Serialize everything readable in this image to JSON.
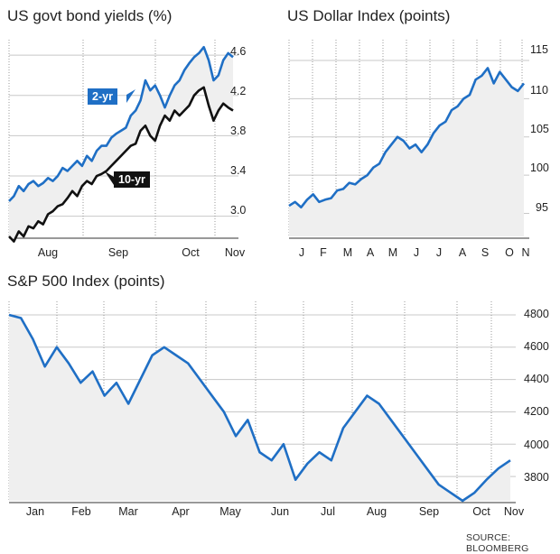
{
  "colors": {
    "blue": "#1f6fc5",
    "black": "#111111",
    "grid": "#c8c8c8",
    "fill": "#efefef"
  },
  "source": "SOURCE: BLOOMBERG",
  "chart_data": [
    {
      "type": "line",
      "title": "US govt bond yields (%)",
      "x_ticks": [
        "Aug",
        "Sep",
        "Oct",
        "Nov"
      ],
      "y_ticks": [
        "4.6",
        "4.2",
        "3.8",
        "3.4",
        "3.0"
      ],
      "ylim": [
        2.8,
        4.7
      ],
      "series": [
        {
          "name": "2-yr",
          "color": "#1f6fc5",
          "points": [
            [
              0,
              3.15
            ],
            [
              2,
              3.2
            ],
            [
              4,
              3.3
            ],
            [
              6,
              3.25
            ],
            [
              8,
              3.32
            ],
            [
              10,
              3.35
            ],
            [
              12,
              3.3
            ],
            [
              14,
              3.33
            ],
            [
              16,
              3.38
            ],
            [
              18,
              3.35
            ],
            [
              20,
              3.4
            ],
            [
              22,
              3.48
            ],
            [
              24,
              3.45
            ],
            [
              26,
              3.5
            ],
            [
              28,
              3.55
            ],
            [
              30,
              3.5
            ],
            [
              32,
              3.6
            ],
            [
              34,
              3.55
            ],
            [
              36,
              3.65
            ],
            [
              38,
              3.7
            ],
            [
              40,
              3.7
            ],
            [
              42,
              3.78
            ],
            [
              44,
              3.82
            ],
            [
              46,
              3.85
            ],
            [
              48,
              3.88
            ],
            [
              50,
              4.0
            ],
            [
              52,
              4.05
            ],
            [
              54,
              4.15
            ],
            [
              56,
              4.35
            ],
            [
              58,
              4.25
            ],
            [
              60,
              4.3
            ],
            [
              62,
              4.2
            ],
            [
              64,
              4.08
            ],
            [
              66,
              4.2
            ],
            [
              68,
              4.3
            ],
            [
              70,
              4.35
            ],
            [
              72,
              4.45
            ],
            [
              74,
              4.52
            ],
            [
              76,
              4.58
            ],
            [
              78,
              4.62
            ],
            [
              80,
              4.68
            ],
            [
              82,
              4.55
            ],
            [
              84,
              4.35
            ],
            [
              86,
              4.4
            ],
            [
              88,
              4.55
            ],
            [
              90,
              4.62
            ],
            [
              92,
              4.58
            ]
          ]
        },
        {
          "name": "10-yr",
          "color": "#111111",
          "points": [
            [
              0,
              2.8
            ],
            [
              2,
              2.75
            ],
            [
              4,
              2.85
            ],
            [
              6,
              2.8
            ],
            [
              8,
              2.9
            ],
            [
              10,
              2.88
            ],
            [
              12,
              2.95
            ],
            [
              14,
              2.92
            ],
            [
              16,
              3.02
            ],
            [
              18,
              3.05
            ],
            [
              20,
              3.1
            ],
            [
              22,
              3.12
            ],
            [
              24,
              3.18
            ],
            [
              26,
              3.25
            ],
            [
              28,
              3.2
            ],
            [
              30,
              3.3
            ],
            [
              32,
              3.35
            ],
            [
              34,
              3.32
            ],
            [
              36,
              3.4
            ],
            [
              38,
              3.42
            ],
            [
              40,
              3.45
            ],
            [
              42,
              3.5
            ],
            [
              44,
              3.55
            ],
            [
              46,
              3.6
            ],
            [
              48,
              3.65
            ],
            [
              50,
              3.7
            ],
            [
              52,
              3.72
            ],
            [
              54,
              3.85
            ],
            [
              56,
              3.9
            ],
            [
              58,
              3.8
            ],
            [
              60,
              3.75
            ],
            [
              62,
              3.9
            ],
            [
              64,
              4.0
            ],
            [
              66,
              3.95
            ],
            [
              68,
              4.05
            ],
            [
              70,
              4.0
            ],
            [
              72,
              4.05
            ],
            [
              74,
              4.1
            ],
            [
              76,
              4.2
            ],
            [
              78,
              4.25
            ],
            [
              80,
              4.28
            ],
            [
              82,
              4.1
            ],
            [
              84,
              3.95
            ],
            [
              86,
              4.05
            ],
            [
              88,
              4.12
            ],
            [
              90,
              4.08
            ],
            [
              92,
              4.05
            ]
          ]
        }
      ]
    },
    {
      "type": "line",
      "title": "US Dollar Index (points)",
      "x_ticks": [
        "J",
        "F",
        "M",
        "A",
        "M",
        "J",
        "J",
        "A",
        "S",
        "O",
        "N"
      ],
      "y_ticks": [
        "115",
        "110",
        "105",
        "100",
        "95"
      ],
      "ylim": [
        92,
        117
      ],
      "series": [
        {
          "name": "",
          "color": "#1f6fc5",
          "points": [
            [
              0,
              96.0
            ],
            [
              3,
              96.5
            ],
            [
              6,
              95.8
            ],
            [
              9,
              96.8
            ],
            [
              12,
              97.5
            ],
            [
              15,
              96.5
            ],
            [
              18,
              96.8
            ],
            [
              21,
              97.0
            ],
            [
              24,
              98.0
            ],
            [
              27,
              98.2
            ],
            [
              30,
              99.0
            ],
            [
              33,
              98.8
            ],
            [
              36,
              99.5
            ],
            [
              39,
              100.0
            ],
            [
              42,
              101.0
            ],
            [
              45,
              101.5
            ],
            [
              48,
              103.0
            ],
            [
              51,
              104.0
            ],
            [
              54,
              105.0
            ],
            [
              57,
              104.5
            ],
            [
              60,
              103.5
            ],
            [
              63,
              104.0
            ],
            [
              66,
              103.0
            ],
            [
              69,
              104.0
            ],
            [
              72,
              105.5
            ],
            [
              75,
              106.5
            ],
            [
              78,
              107.0
            ],
            [
              81,
              108.5
            ],
            [
              84,
              109.0
            ],
            [
              87,
              110.0
            ],
            [
              90,
              110.5
            ],
            [
              93,
              112.5
            ],
            [
              96,
              113.0
            ],
            [
              99,
              114.0
            ],
            [
              102,
              112.0
            ],
            [
              105,
              113.5
            ],
            [
              108,
              112.5
            ],
            [
              111,
              111.5
            ],
            [
              114,
              111.0
            ],
            [
              117,
              112.0
            ]
          ]
        }
      ]
    },
    {
      "type": "line",
      "title": "S&P 500 Index (points)",
      "x_ticks": [
        "Jan",
        "Feb",
        "Mar",
        "Apr",
        "May",
        "Jun",
        "Jul",
        "Aug",
        "Sep",
        "Oct",
        "Nov"
      ],
      "y_ticks": [
        "4800",
        "4600",
        "4400",
        "4200",
        "4000",
        "3800"
      ],
      "ylim": [
        3650,
        4850
      ],
      "series": [
        {
          "name": "",
          "color": "#1f6fc5",
          "points": [
            [
              0,
              4800
            ],
            [
              5,
              4780
            ],
            [
              10,
              4650
            ],
            [
              15,
              4480
            ],
            [
              20,
              4600
            ],
            [
              25,
              4500
            ],
            [
              30,
              4380
            ],
            [
              35,
              4450
            ],
            [
              40,
              4300
            ],
            [
              45,
              4380
            ],
            [
              50,
              4250
            ],
            [
              55,
              4400
            ],
            [
              60,
              4550
            ],
            [
              65,
              4600
            ],
            [
              70,
              4550
            ],
            [
              75,
              4500
            ],
            [
              80,
              4400
            ],
            [
              85,
              4300
            ],
            [
              90,
              4200
            ],
            [
              95,
              4050
            ],
            [
              100,
              4150
            ],
            [
              105,
              3950
            ],
            [
              110,
              3900
            ],
            [
              115,
              4000
            ],
            [
              120,
              3780
            ],
            [
              125,
              3880
            ],
            [
              130,
              3950
            ],
            [
              135,
              3900
            ],
            [
              140,
              4100
            ],
            [
              145,
              4200
            ],
            [
              150,
              4300
            ],
            [
              155,
              4250
            ],
            [
              160,
              4150
            ],
            [
              165,
              4050
            ],
            [
              170,
              3950
            ],
            [
              175,
              3850
            ],
            [
              180,
              3750
            ],
            [
              185,
              3700
            ],
            [
              190,
              3650
            ],
            [
              195,
              3700
            ],
            [
              200,
              3780
            ],
            [
              205,
              3850
            ],
            [
              210,
              3900
            ]
          ]
        }
      ]
    }
  ]
}
